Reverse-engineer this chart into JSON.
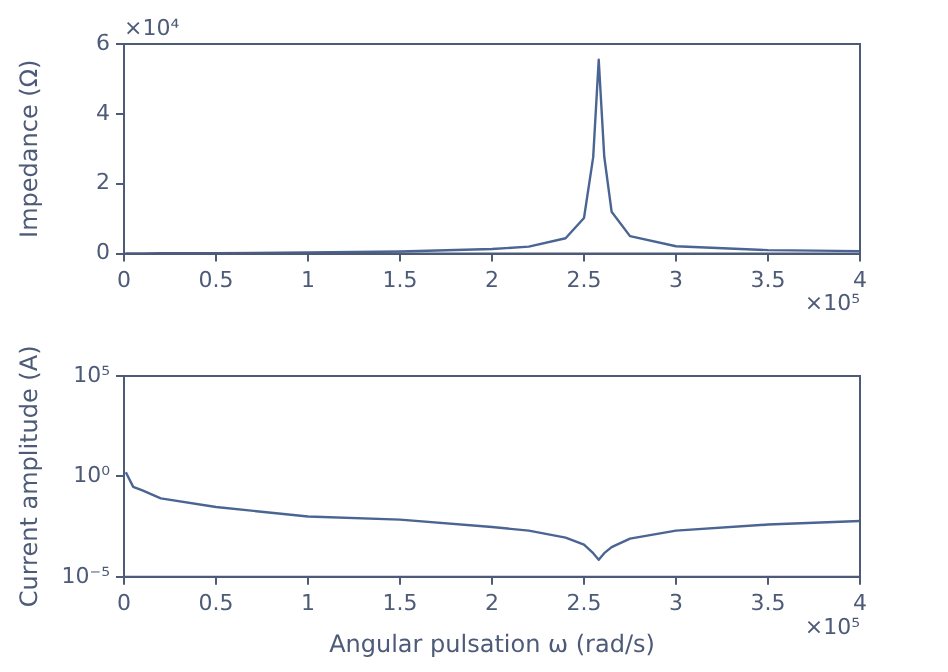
{
  "chart_data": [
    {
      "type": "line",
      "ylabel": "Impedance (Ω)",
      "annotations": [
        "×10⁴",
        "×10⁵"
      ],
      "x": [
        0.01,
        0.05,
        0.1,
        0.2,
        0.5,
        1,
        1.5,
        2,
        2.2,
        2.4,
        2.5,
        2.55,
        2.58,
        2.61,
        2.65,
        2.75,
        3,
        3.5,
        4
      ],
      "series": [
        {
          "color": "#4a6593",
          "values": [
            0,
            0,
            0,
            0.01,
            0.01,
            0.03,
            0.06,
            0.13,
            0.2,
            0.44,
            1.02,
            2.76,
            5.55,
            2.78,
            1.2,
            0.5,
            0.21,
            0.1,
            0.07
          ]
        }
      ],
      "xlim": [
        0,
        4
      ],
      "xticks": [
        0,
        0.5,
        1,
        1.5,
        2,
        2.5,
        3,
        3.5,
        4
      ],
      "ylim": [
        0,
        6
      ],
      "yticks": [
        0,
        2,
        4,
        6
      ],
      "legend": false,
      "marker": "none",
      "line_style": "solid"
    },
    {
      "type": "line",
      "xlabel": "Angular pulsation ω (rad/s)",
      "ylabel": "Current amplitude (A)",
      "annotations": [
        "×10⁵"
      ],
      "log": "y",
      "x": [
        0.01,
        0.05,
        0.1,
        0.2,
        0.5,
        1,
        1.5,
        2,
        2.2,
        2.4,
        2.5,
        2.55,
        2.58,
        2.61,
        2.65,
        2.75,
        3,
        3.5,
        4
      ],
      "series": [
        {
          "color": "#4a6593",
          "values": [
            1.6,
            0.3,
            0.2,
            0.08,
            0.03,
            0.01,
            0.007,
            0.003,
            0.002,
            0.0009,
            0.0004,
            0.00015,
            7e-05,
            0.00015,
            0.0003,
            0.0008,
            0.002,
            0.004,
            0.006
          ]
        }
      ],
      "xlim": [
        0,
        4
      ],
      "xticks": [
        0,
        0.5,
        1,
        1.5,
        2,
        2.5,
        3,
        3.5,
        4
      ],
      "ylim": [
        1e-05,
        100000
      ],
      "yticks": [
        {
          "value": 1e-05,
          "label": "10⁻⁵"
        },
        {
          "value": 1,
          "label": "10⁰"
        },
        {
          "value": 100000,
          "label": "10⁵"
        }
      ],
      "legend": false,
      "marker": "none",
      "line_style": "solid"
    }
  ]
}
